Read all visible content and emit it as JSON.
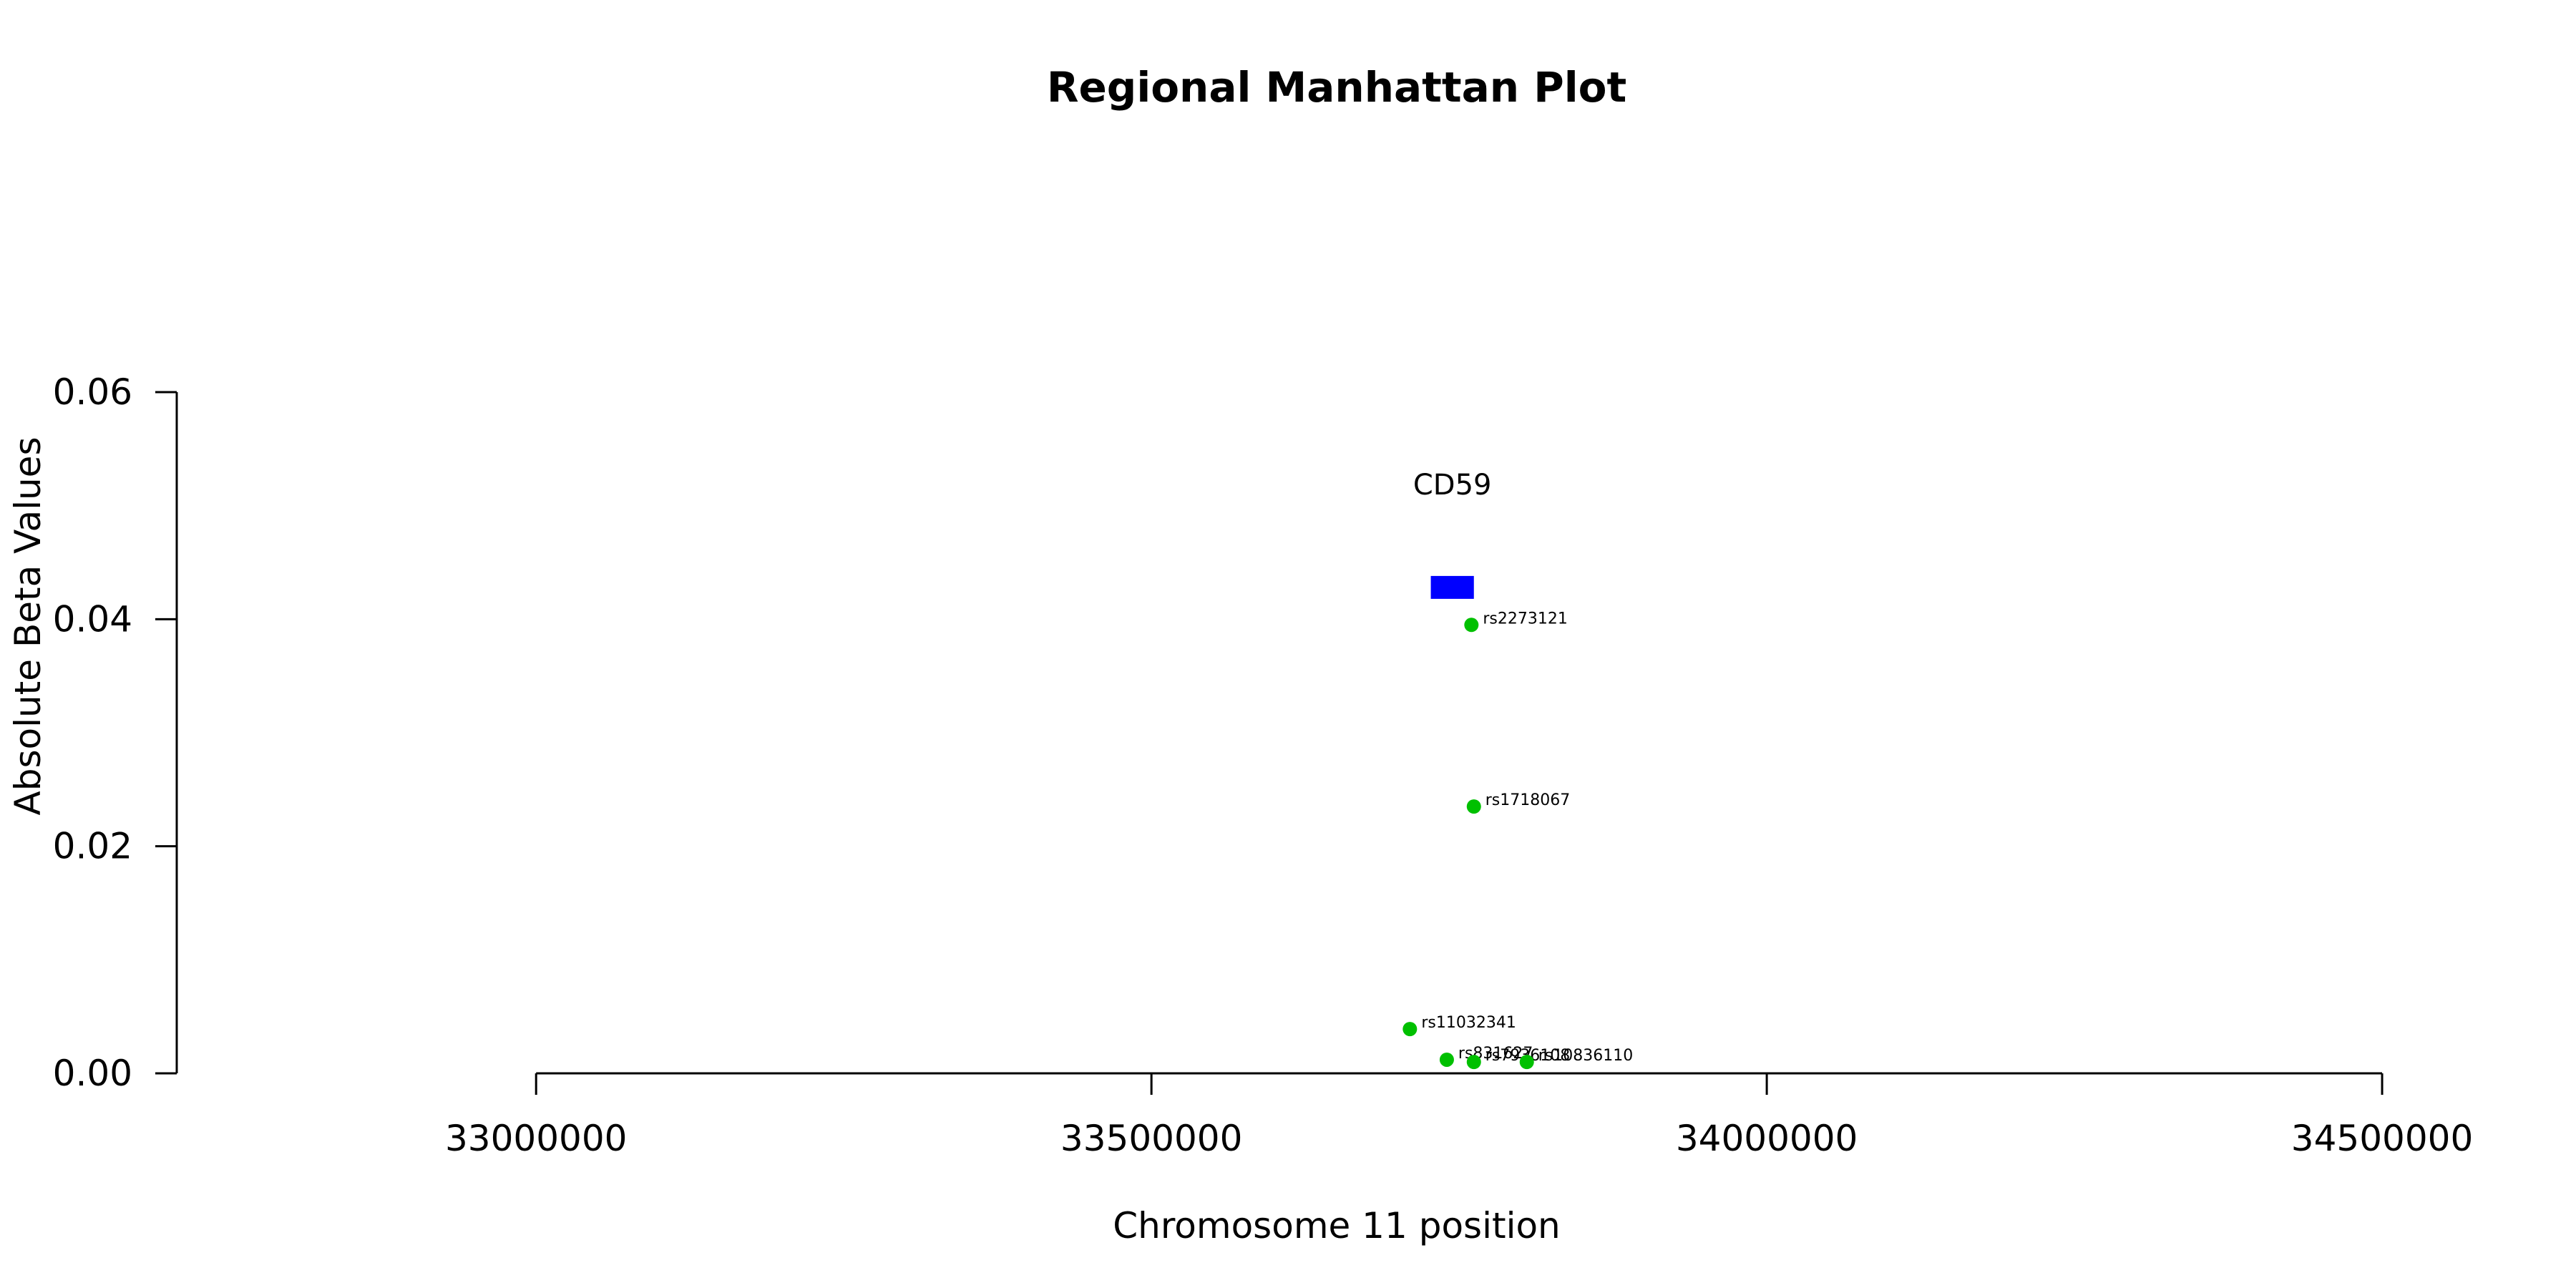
{
  "chart_data": {
    "type": "scatter",
    "title": "Regional Manhattan Plot",
    "xlabel": "Chromosome 11 position",
    "ylabel": "Absolute Beta Values",
    "xlim": [
      32708000,
      34593000
    ],
    "ylim": [
      0.0,
      0.06
    ],
    "xticks": [
      33000000,
      33500000,
      34000000,
      34500000
    ],
    "xtick_labels": [
      "33000000",
      "33500000",
      "34000000",
      "34500000"
    ],
    "yticks": [
      0.0,
      0.02,
      0.04,
      0.06
    ],
    "ytick_labels": [
      "0.00",
      "0.02",
      "0.04",
      "0.06"
    ],
    "grid": false,
    "point_color": "#00c000",
    "gene_color": "#0000ff",
    "genes": [
      {
        "name": "CD59",
        "start": 33727000,
        "end": 33762000,
        "y": 0.0428
      }
    ],
    "points": [
      {
        "label": "rs2273121",
        "x": 33760000,
        "y": 0.0395
      },
      {
        "label": "rs1718067",
        "x": 33762000,
        "y": 0.0235
      },
      {
        "label": "rs11032341",
        "x": 33710000,
        "y": 0.0039
      },
      {
        "label": "rs831627",
        "x": 33740000,
        "y": 0.0012
      },
      {
        "label": "rs7936108",
        "x": 33762000,
        "y": 0.001
      },
      {
        "label": "rs10836110",
        "x": 33805000,
        "y": 0.001
      }
    ]
  }
}
